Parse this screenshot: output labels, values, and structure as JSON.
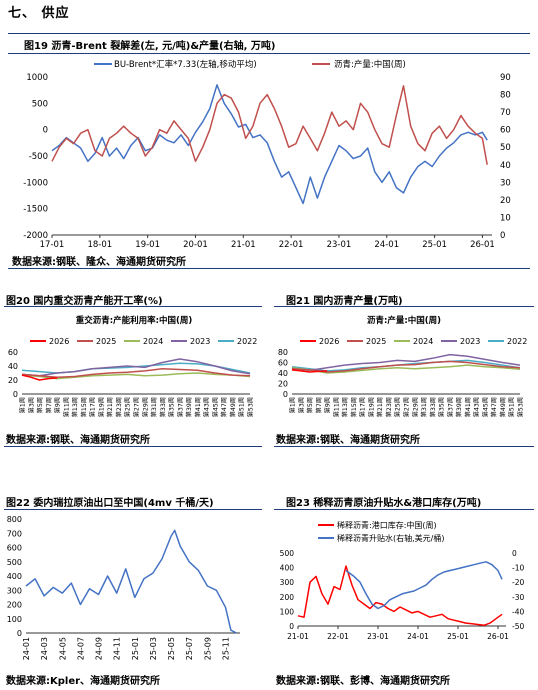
{
  "section_title": "七、 供应",
  "charts": {
    "c19": {
      "title": "图19 沥青-Brent 裂解差(左, 元/吨)&产量(右轴, 万吨)",
      "source": "数据来源:钢联、隆众、海通期货研究所",
      "legend": [
        "BU-Brent*汇率*7.33(左轴,移动平均)",
        "沥青:产量:中国(周)"
      ]
    },
    "c20": {
      "title": "图20 国内重交沥青产能开工率(%)",
      "subtitle": "重交沥青:产能利用率:中国(周)",
      "source": "数据来源:钢联、海通期货研究所"
    },
    "c21": {
      "title": "图21 国内沥青产量(万吨)",
      "subtitle": "沥青:产量:中国(周)",
      "source": "数据来源:钢联、海通期货研究所"
    },
    "c22": {
      "title": "图22 委内瑞拉原油出口至中国(4mv 千桶/天)",
      "source": "数据来源:Kpler、海通期货研究所"
    },
    "c23": {
      "title": "图23 稀释沥青原油升贴水&港口库存(万吨)",
      "source": "数据来源:钢联、彭博、海通期货研究所",
      "legend": [
        "稀释沥青:港口库存:中国(周)",
        "稀释沥青升贴水(右轴,美元/桶)"
      ]
    }
  },
  "chart_data": [
    {
      "id": "c19",
      "type": "line",
      "x_ticks": [
        "17-01",
        "18-01",
        "19-01",
        "20-01",
        "21-01",
        "22-01",
        "23-01",
        "24-01",
        "25-01",
        "26-01"
      ],
      "ylim_left": [
        -2000,
        1000
      ],
      "yticks_left": [
        1000,
        500,
        0,
        -500,
        -1000,
        -1500,
        -2000
      ],
      "ylim_right": [
        0,
        90
      ],
      "yticks_right": [
        90,
        80,
        70,
        60,
        50,
        40,
        30,
        20,
        10,
        0
      ],
      "series": [
        {
          "name": "BU-Brent*汇率*7.33(左轴,移动平均)",
          "axis": "left",
          "color": "#4472c4",
          "x": [
            2017.0,
            2017.15,
            2017.3,
            2017.45,
            2017.6,
            2017.75,
            2017.9,
            2018.05,
            2018.2,
            2018.35,
            2018.5,
            2018.65,
            2018.8,
            2018.95,
            2019.1,
            2019.25,
            2019.4,
            2019.55,
            2019.7,
            2019.85,
            2020.0,
            2020.15,
            2020.3,
            2020.45,
            2020.6,
            2020.75,
            2020.9,
            2021.05,
            2021.2,
            2021.35,
            2021.5,
            2021.65,
            2021.8,
            2021.95,
            2022.1,
            2022.25,
            2022.4,
            2022.55,
            2022.7,
            2022.85,
            2023.0,
            2023.15,
            2023.3,
            2023.45,
            2023.6,
            2023.75,
            2023.9,
            2024.05,
            2024.2,
            2024.35,
            2024.5,
            2024.65,
            2024.8,
            2024.95,
            2025.1,
            2025.25,
            2025.4,
            2025.55,
            2025.7,
            2025.85,
            2026.0,
            2026.1
          ],
          "y": [
            -400,
            -300,
            -150,
            -250,
            -350,
            -600,
            -450,
            -150,
            -500,
            -350,
            -550,
            -300,
            -150,
            -400,
            -350,
            -100,
            -200,
            -250,
            -100,
            -300,
            -50,
            150,
            400,
            850,
            500,
            300,
            50,
            100,
            -150,
            -100,
            -250,
            -600,
            -900,
            -800,
            -1100,
            -1400,
            -900,
            -1300,
            -900,
            -600,
            -300,
            -400,
            -550,
            -500,
            -350,
            -800,
            -1000,
            -800,
            -1100,
            -1200,
            -900,
            -700,
            -600,
            -700,
            -500,
            -350,
            -250,
            -100,
            -50,
            -100,
            -50,
            -200
          ]
        },
        {
          "name": "沥青:产量:中国(周)",
          "axis": "right",
          "color": "#c0504d",
          "x": [
            2017.0,
            2017.15,
            2017.3,
            2017.45,
            2017.6,
            2017.75,
            2017.9,
            2018.05,
            2018.2,
            2018.35,
            2018.5,
            2018.65,
            2018.8,
            2018.95,
            2019.1,
            2019.25,
            2019.4,
            2019.55,
            2019.7,
            2019.85,
            2020.0,
            2020.15,
            2020.3,
            2020.45,
            2020.6,
            2020.75,
            2020.9,
            2021.05,
            2021.2,
            2021.35,
            2021.5,
            2021.65,
            2021.8,
            2021.95,
            2022.1,
            2022.25,
            2022.4,
            2022.55,
            2022.7,
            2022.85,
            2023.0,
            2023.15,
            2023.3,
            2023.45,
            2023.6,
            2023.75,
            2023.9,
            2024.05,
            2024.2,
            2024.35,
            2024.5,
            2024.65,
            2024.8,
            2024.95,
            2025.1,
            2025.25,
            2025.4,
            2025.55,
            2025.7,
            2025.85,
            2026.0,
            2026.1
          ],
          "y": [
            42,
            50,
            55,
            52,
            58,
            60,
            48,
            45,
            55,
            58,
            62,
            58,
            55,
            45,
            50,
            60,
            58,
            65,
            60,
            55,
            42,
            50,
            60,
            75,
            80,
            78,
            70,
            55,
            62,
            75,
            80,
            72,
            62,
            50,
            52,
            62,
            55,
            48,
            58,
            70,
            62,
            65,
            60,
            75,
            70,
            60,
            52,
            50,
            68,
            85,
            62,
            52,
            48,
            58,
            62,
            55,
            60,
            68,
            62,
            58,
            55,
            40
          ]
        }
      ]
    },
    {
      "id": "c20",
      "type": "line",
      "x_labels": [
        "第1周",
        "第3周",
        "第5周",
        "第7周",
        "第9周",
        "第11周",
        "第13周",
        "第15周",
        "第17周",
        "第19周",
        "第21周",
        "第23周",
        "第25周",
        "第27周",
        "第29周",
        "第31周",
        "第33周",
        "第35周",
        "第37周",
        "第39周",
        "第41周",
        "第43周",
        "第45周",
        "第47周",
        "第49周",
        "第51周",
        "第53周"
      ],
      "ylim": [
        0,
        60
      ],
      "yticks": [
        0,
        20,
        40,
        60
      ],
      "series": [
        {
          "name": "2026",
          "color": "#ff0000",
          "x": [
            1,
            3,
            5,
            7,
            9
          ],
          "y": [
            27,
            24,
            20,
            22,
            23
          ]
        },
        {
          "name": "2025",
          "color": "#c0504d",
          "x": [
            1,
            5,
            9,
            13,
            17,
            21,
            25,
            29,
            33,
            37,
            41,
            45,
            49,
            53
          ],
          "y": [
            28,
            26,
            24,
            25,
            28,
            30,
            31,
            33,
            36,
            35,
            34,
            30,
            27,
            26
          ]
        },
        {
          "name": "2024",
          "color": "#9bbb59",
          "x": [
            1,
            5,
            9,
            13,
            17,
            21,
            25,
            29,
            33,
            37,
            41,
            45,
            49,
            53
          ],
          "y": [
            27,
            25,
            22,
            24,
            26,
            27,
            28,
            26,
            27,
            29,
            30,
            28,
            27,
            25
          ]
        },
        {
          "name": "2023",
          "color": "#8064a2",
          "x": [
            1,
            5,
            9,
            13,
            17,
            21,
            25,
            29,
            33,
            37,
            41,
            45,
            49,
            53
          ],
          "y": [
            28,
            26,
            30,
            32,
            36,
            38,
            40,
            38,
            45,
            50,
            46,
            40,
            33,
            29
          ]
        },
        {
          "name": "2022",
          "color": "#4bacc6",
          "x": [
            1,
            5,
            9,
            13,
            17,
            21,
            25,
            29,
            33,
            37,
            41,
            45,
            49,
            53
          ],
          "y": [
            34,
            32,
            30,
            32,
            36,
            37,
            38,
            40,
            42,
            44,
            43,
            40,
            35,
            30
          ]
        }
      ]
    },
    {
      "id": "c21",
      "type": "line",
      "x_labels": [
        "第1周",
        "第3周",
        "第5周",
        "第7周",
        "第9周",
        "第11周",
        "第13周",
        "第15周",
        "第17周",
        "第19周",
        "第21周",
        "第23周",
        "第25周",
        "第27周",
        "第29周",
        "第31周",
        "第33周",
        "第35周",
        "第37周",
        "第39周",
        "第41周",
        "第43周",
        "第45周",
        "第47周",
        "第49周",
        "第51周",
        "第53周"
      ],
      "ylim": [
        0,
        80
      ],
      "yticks": [
        0,
        20,
        40,
        60,
        80
      ],
      "series": [
        {
          "name": "2026",
          "color": "#ff0000",
          "x": [
            1,
            3,
            5,
            7,
            9
          ],
          "y": [
            46,
            44,
            42,
            43,
            44
          ]
        },
        {
          "name": "2025",
          "color": "#c0504d",
          "x": [
            1,
            5,
            9,
            13,
            17,
            21,
            25,
            29,
            33,
            37,
            41,
            45,
            49,
            53
          ],
          "y": [
            48,
            46,
            42,
            44,
            48,
            52,
            55,
            56,
            60,
            62,
            60,
            56,
            52,
            50
          ]
        },
        {
          "name": "2024",
          "color": "#9bbb59",
          "x": [
            1,
            5,
            9,
            13,
            17,
            21,
            25,
            29,
            33,
            37,
            41,
            45,
            49,
            53
          ],
          "y": [
            50,
            46,
            40,
            42,
            45,
            48,
            50,
            48,
            50,
            52,
            55,
            52,
            50,
            47
          ]
        },
        {
          "name": "2023",
          "color": "#8064a2",
          "x": [
            1,
            5,
            9,
            13,
            17,
            21,
            25,
            29,
            33,
            37,
            41,
            45,
            49,
            53
          ],
          "y": [
            48,
            45,
            50,
            55,
            58,
            60,
            64,
            62,
            68,
            75,
            72,
            66,
            60,
            55
          ]
        },
        {
          "name": "2022",
          "color": "#4bacc6",
          "x": [
            1,
            5,
            9,
            13,
            17,
            21,
            25,
            29,
            33,
            37,
            41,
            45,
            49,
            53
          ],
          "y": [
            52,
            48,
            44,
            46,
            50,
            52,
            55,
            58,
            60,
            62,
            64,
            60,
            55,
            50
          ]
        }
      ]
    },
    {
      "id": "c22",
      "type": "line",
      "x_labels": [
        "24-01",
        "24-03",
        "24-05",
        "24-07",
        "24-09",
        "24-11",
        "25-01",
        "25-03",
        "25-05",
        "25-07",
        "25-09",
        "25-11"
      ],
      "ylim": [
        0,
        800
      ],
      "yticks": [
        0,
        100,
        200,
        300,
        400,
        500,
        600,
        700,
        800
      ],
      "series": [
        {
          "name": "",
          "color": "#4472c4",
          "x": [
            0,
            0.5,
            1,
            1.5,
            2,
            2.5,
            3,
            3.5,
            4,
            4.5,
            5,
            5.5,
            6,
            6.5,
            7,
            7.5,
            8,
            8.2,
            8.5,
            9,
            9.5,
            10,
            10.5,
            11,
            11.3,
            11.6
          ],
          "y": [
            330,
            380,
            260,
            320,
            280,
            350,
            200,
            310,
            270,
            400,
            280,
            450,
            250,
            380,
            420,
            520,
            680,
            720,
            610,
            500,
            440,
            330,
            300,
            180,
            20,
            0
          ]
        }
      ]
    },
    {
      "id": "c23",
      "type": "line",
      "x_labels": [
        "21-01",
        "22-01",
        "23-01",
        "24-01",
        "25-01",
        "26-01"
      ],
      "ylim_left": [
        0,
        500
      ],
      "yticks_left": [
        0,
        100,
        200,
        300,
        400,
        500
      ],
      "ylim_right": [
        -50,
        0
      ],
      "yticks_right": [
        0,
        -10,
        -20,
        -30,
        -40,
        -50
      ],
      "series": [
        {
          "name": "稀释沥青:港口库存:中国(周)",
          "axis": "left",
          "color": "#ff0000",
          "x": [
            2021.0,
            2021.15,
            2021.3,
            2021.45,
            2021.6,
            2021.75,
            2021.9,
            2022.05,
            2022.2,
            2022.35,
            2022.5,
            2022.65,
            2022.8,
            2022.95,
            2023.1,
            2023.25,
            2023.4,
            2023.55,
            2023.7,
            2023.85,
            2024.0,
            2024.15,
            2024.3,
            2024.45,
            2024.6,
            2024.75,
            2024.9,
            2025.05,
            2025.2,
            2025.35,
            2025.5,
            2025.65,
            2025.8,
            2025.95,
            2026.1
          ],
          "y": [
            70,
            60,
            300,
            340,
            220,
            150,
            270,
            250,
            410,
            280,
            180,
            150,
            120,
            160,
            150,
            120,
            100,
            130,
            110,
            90,
            100,
            80,
            60,
            70,
            80,
            50,
            40,
            30,
            20,
            15,
            10,
            5,
            20,
            50,
            80
          ]
        },
        {
          "name": "稀释沥青升贴水(右轴,美元/桶)",
          "axis": "right",
          "color": "#4472c4",
          "x": [
            2022.2,
            2022.4,
            2022.55,
            2022.7,
            2022.85,
            2023.0,
            2023.15,
            2023.3,
            2023.45,
            2023.6,
            2023.75,
            2023.9,
            2024.05,
            2024.2,
            2024.35,
            2024.5,
            2024.65,
            2024.8,
            2024.95,
            2025.1,
            2025.25,
            2025.4,
            2025.55,
            2025.7,
            2025.85,
            2026.0,
            2026.1
          ],
          "y": [
            -12,
            -16,
            -20,
            -28,
            -35,
            -38,
            -36,
            -32,
            -30,
            -28,
            -27,
            -26,
            -24,
            -22,
            -18,
            -15,
            -13,
            -12,
            -11,
            -10,
            -9,
            -8,
            -7,
            -6,
            -8,
            -12,
            -18
          ]
        }
      ]
    }
  ]
}
